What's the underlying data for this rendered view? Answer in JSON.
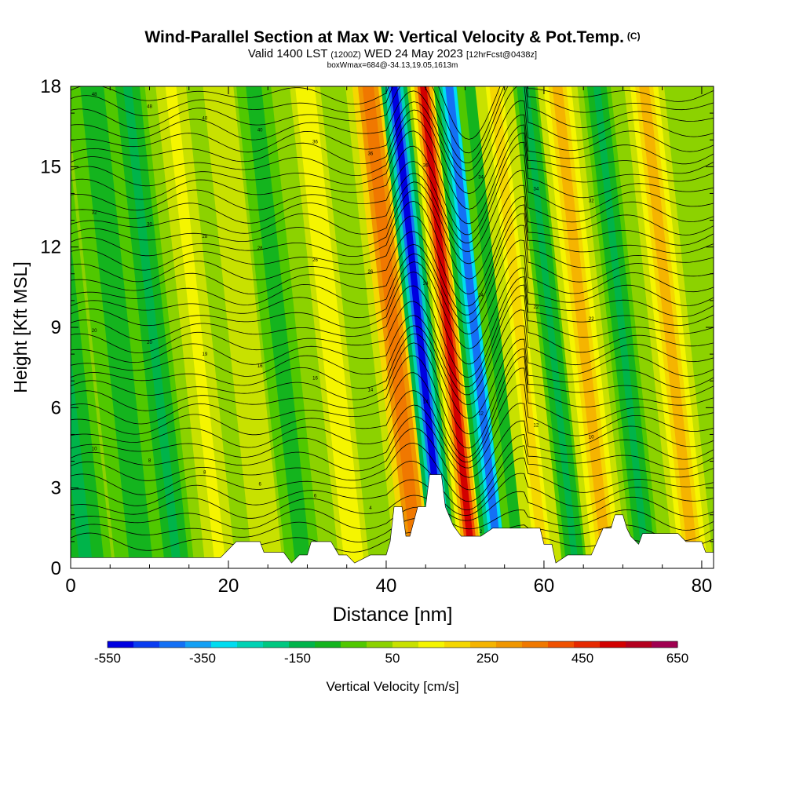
{
  "title": {
    "main": "Wind-Parallel Section at Max W: Vertical Velocity & Pot.Temp.",
    "main_suffix": "(C)",
    "valid_a": "Valid 1400 LST",
    "valid_b": "(1200Z)",
    "valid_c": "WED 24 May 2023",
    "valid_d": "[12hrFcst@0438z]",
    "box": "boxWmax=684@-34.13,19.05,1613m"
  },
  "chart_data": {
    "type": "heatmap",
    "xlabel": "Distance [nm]",
    "ylabel": "Height [Kft MSL]",
    "xlim": [
      0,
      81.5
    ],
    "ylim": [
      0,
      18
    ],
    "x_ticks": [
      0,
      20,
      40,
      60,
      80
    ],
    "y_ticks": [
      0,
      3,
      6,
      9,
      12,
      15,
      18
    ],
    "colorbar": {
      "label": "Vertical Velocity [cm/s]",
      "ticks": [
        -550,
        -350,
        -150,
        50,
        250,
        450,
        650
      ],
      "colors": [
        "#0000e0",
        "#0a3cf0",
        "#1470f5",
        "#14a0f5",
        "#00dcf0",
        "#00d2b4",
        "#00c880",
        "#00b44a",
        "#14b41e",
        "#50c800",
        "#8cd200",
        "#c8e100",
        "#f5f500",
        "#f5d700",
        "#f5b400",
        "#f09600",
        "#f07800",
        "#f05000",
        "#e62800",
        "#d20000",
        "#b4001e",
        "#a00050"
      ]
    },
    "velocity_bands": [
      {
        "x": 2,
        "w": 3,
        "v": -120
      },
      {
        "x": 9,
        "w": 3,
        "v": -90
      },
      {
        "x": 13.5,
        "w": 2,
        "v": -130
      },
      {
        "x": 19,
        "w": 2.5,
        "v": 110
      },
      {
        "x": 25,
        "w": 2.5,
        "v": 100
      },
      {
        "x": 29.5,
        "w": 2,
        "v": -110
      },
      {
        "x": 36,
        "w": 2.5,
        "v": 150
      },
      {
        "x": 44,
        "w": 2.6,
        "v": 360
      },
      {
        "x": 47.3,
        "w": 1.5,
        "v": -550
      },
      {
        "x": 51,
        "w": 1.5,
        "v": 520
      },
      {
        "x": 54.3,
        "w": 1.8,
        "v": -400
      },
      {
        "x": 57,
        "w": 1.6,
        "v": -110
      },
      {
        "x": 60,
        "w": 2.2,
        "v": 200
      },
      {
        "x": 64,
        "w": 1.5,
        "v": -150
      },
      {
        "x": 68,
        "w": 2.3,
        "v": 230
      },
      {
        "x": 73,
        "w": 1.6,
        "v": -120
      },
      {
        "x": 79,
        "w": 2.3,
        "v": 220
      }
    ],
    "terrain": [
      [
        0,
        0.4
      ],
      [
        19,
        0.4
      ],
      [
        21,
        1
      ],
      [
        24,
        1
      ],
      [
        24.5,
        0.6
      ],
      [
        27,
        0.6
      ],
      [
        28,
        0.2
      ],
      [
        29,
        0.5
      ],
      [
        30,
        0.5
      ],
      [
        30.5,
        1
      ],
      [
        33,
        1
      ],
      [
        34,
        0.5
      ],
      [
        35,
        0.5
      ],
      [
        36,
        0.2
      ],
      [
        38,
        0.5
      ],
      [
        40,
        0.5
      ],
      [
        40.5,
        1
      ],
      [
        41,
        2.3
      ],
      [
        42,
        2.3
      ],
      [
        42.5,
        1.2
      ],
      [
        43,
        1.2
      ],
      [
        44,
        2.3
      ],
      [
        45,
        2.3
      ],
      [
        45.5,
        3.5
      ],
      [
        47,
        3.5
      ],
      [
        47.5,
        2.3
      ],
      [
        48.5,
        1.6
      ],
      [
        49.5,
        1.2
      ],
      [
        52,
        1.2
      ],
      [
        53.5,
        1.5
      ],
      [
        59.5,
        1.5
      ],
      [
        60,
        0.9
      ],
      [
        61,
        0.9
      ],
      [
        61.5,
        0.2
      ],
      [
        63,
        0.5
      ],
      [
        66,
        0.5
      ],
      [
        67.5,
        1.5
      ],
      [
        68.5,
        1.5
      ],
      [
        69,
        2
      ],
      [
        70,
        2
      ],
      [
        70.5,
        1.5
      ],
      [
        71,
        1.2
      ],
      [
        72,
        0.9
      ],
      [
        72.5,
        1.3
      ],
      [
        77,
        1.3
      ],
      [
        78,
        1
      ],
      [
        80,
        1
      ],
      [
        80.5,
        0.6
      ],
      [
        81.5,
        0.6
      ]
    ],
    "theta_labels": [
      "48",
      "48",
      "40",
      "40",
      "36",
      "36",
      "36",
      "34",
      "34",
      "32",
      "32",
      "30",
      "28",
      "28",
      "26",
      "26",
      "24",
      "24",
      "22",
      "22",
      "20",
      "20",
      "19",
      "16",
      "16",
      "14",
      "14",
      "12",
      "12",
      "10",
      "10",
      "8",
      "8",
      "6",
      "6",
      "4",
      "4",
      "2",
      "2"
    ]
  }
}
